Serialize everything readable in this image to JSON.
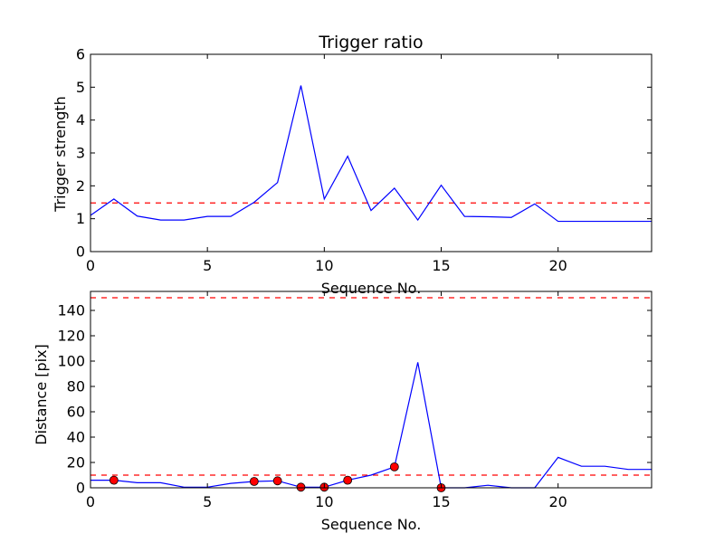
{
  "chart_data": [
    {
      "type": "line",
      "title": "Trigger ratio",
      "xlabel": "Sequence No.",
      "ylabel": "Trigger strength",
      "xlim": [
        0,
        24
      ],
      "ylim": [
        0,
        6
      ],
      "xticks": [
        0,
        5,
        10,
        15,
        20
      ],
      "yticks": [
        0,
        1,
        2,
        3,
        4,
        5,
        6
      ],
      "grid": false,
      "series": [
        {
          "color": "#0000ff",
          "style": "solid",
          "x": [
            0,
            1,
            2,
            3,
            4,
            5,
            6,
            7,
            8,
            9,
            10,
            11,
            12,
            13,
            14,
            15,
            16,
            17,
            18,
            19,
            20,
            21,
            22,
            23,
            24
          ],
          "y": [
            1.1,
            1.6,
            1.08,
            0.96,
            0.96,
            1.07,
            1.07,
            1.5,
            2.1,
            5.05,
            1.6,
            2.9,
            1.25,
            1.93,
            0.96,
            2.02,
            1.07,
            1.06,
            1.04,
            1.45,
            0.92,
            0.92,
            0.92,
            0.92,
            0.92
          ]
        }
      ],
      "reference_lines": [
        {
          "y": 1.48,
          "color": "#ff0000",
          "style": "dashed"
        }
      ]
    },
    {
      "type": "line",
      "title": "",
      "xlabel": "Sequence No.",
      "ylabel": "Distance [pix]",
      "xlim": [
        0,
        24
      ],
      "ylim": [
        0,
        155
      ],
      "xticks": [
        0,
        5,
        10,
        15,
        20
      ],
      "yticks": [
        0,
        20,
        40,
        60,
        80,
        100,
        120,
        140
      ],
      "grid": false,
      "series": [
        {
          "color": "#0000ff",
          "style": "solid",
          "x": [
            0,
            1,
            2,
            3,
            4,
            5,
            6,
            7,
            8,
            9,
            10,
            11,
            12,
            13,
            14,
            15,
            16,
            17,
            18,
            19,
            20,
            21,
            22,
            23,
            24
          ],
          "y": [
            6,
            6,
            4,
            4,
            0.5,
            0.5,
            3.5,
            5,
            5.5,
            0.5,
            0.5,
            6,
            10,
            16.5,
            99,
            0,
            0,
            2,
            0,
            0,
            24,
            17,
            17,
            14.5,
            14.5
          ]
        },
        {
          "color": "#ff0000",
          "style": "markers",
          "x": [
            1,
            7,
            8,
            9,
            10,
            11,
            13,
            15
          ],
          "y": [
            6,
            5,
            5.5,
            0.5,
            0.5,
            6,
            16.5,
            0
          ]
        }
      ],
      "reference_lines": [
        {
          "y": 150,
          "color": "#ff0000",
          "style": "dashed"
        },
        {
          "y": 10,
          "color": "#ff0000",
          "style": "dashed"
        }
      ]
    }
  ]
}
